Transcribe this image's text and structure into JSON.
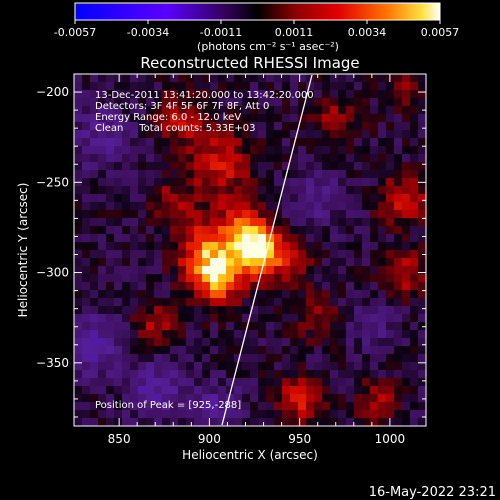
{
  "colors": {
    "background": "#000000",
    "text": "#ffffff",
    "limb": "#ffffff"
  },
  "colorbar": {
    "ticks": [
      "-0.0057",
      "-0.0034",
      "-0.0011",
      "0.0011",
      "0.0034",
      "0.0057"
    ],
    "unit_label": "(photons cm⁻² s⁻¹ asec⁻²)",
    "min": -0.0057,
    "max": 0.0057
  },
  "chart_data": {
    "type": "heatmap",
    "title": "Reconstructed RHESSI Image",
    "xlabel": "Heliocentric X (arcsec)",
    "ylabel": "Heliocentric Y (arcsec)",
    "xlim": [
      825,
      1020
    ],
    "ylim": [
      -385,
      -190
    ],
    "xticks": [
      850,
      900,
      950,
      1000
    ],
    "yticks": [
      -200,
      -250,
      -300,
      -350
    ],
    "annotations": [
      "13-Dec-2011 13:41:20.000 to 13:42:20.000",
      "Detectors: 3F 4F 5F 6F 7F 8F, Att 0",
      "Energy Range: 6.0 - 12.0 keV",
      "Clean     Total counts: 5.33E+03"
    ],
    "peak_label": "Position of Peak = [925,-288]",
    "peak": [
      925,
      -288
    ],
    "sources": [
      {
        "x": 927,
        "y": -288,
        "amp": 0.0057,
        "sigma": 9
      },
      {
        "x": 905,
        "y": -303,
        "amp": 0.0046,
        "sigma": 10
      },
      {
        "x": 897,
        "y": -288,
        "amp": 0.0034,
        "sigma": 11
      },
      {
        "x": 917,
        "y": -275,
        "amp": 0.003,
        "sigma": 11
      },
      {
        "x": 945,
        "y": -295,
        "amp": 0.002,
        "sigma": 9
      },
      {
        "x": 907,
        "y": -240,
        "amp": 0.0028,
        "sigma": 12
      },
      {
        "x": 885,
        "y": -215,
        "amp": 0.0024,
        "sigma": 10
      },
      {
        "x": 880,
        "y": -260,
        "amp": 0.0018,
        "sigma": 9
      },
      {
        "x": 960,
        "y": -325,
        "amp": 0.0016,
        "sigma": 9
      },
      {
        "x": 950,
        "y": -370,
        "amp": 0.0028,
        "sigma": 9
      },
      {
        "x": 992,
        "y": -372,
        "amp": 0.0022,
        "sigma": 8
      },
      {
        "x": 1007,
        "y": -260,
        "amp": 0.003,
        "sigma": 9
      },
      {
        "x": 1010,
        "y": -300,
        "amp": 0.0022,
        "sigma": 9
      },
      {
        "x": 970,
        "y": -215,
        "amp": 0.0018,
        "sigma": 9
      },
      {
        "x": 1010,
        "y": -200,
        "amp": 0.0016,
        "sigma": 8
      },
      {
        "x": 870,
        "y": -330,
        "amp": 0.002,
        "sigma": 9
      },
      {
        "x": 840,
        "y": -225,
        "amp": -0.0016,
        "sigma": 14
      },
      {
        "x": 835,
        "y": -340,
        "amp": -0.0024,
        "sigma": 12
      },
      {
        "x": 870,
        "y": -365,
        "amp": -0.0022,
        "sigma": 12
      },
      {
        "x": 905,
        "y": -375,
        "amp": -0.0018,
        "sigma": 10
      },
      {
        "x": 960,
        "y": -260,
        "amp": -0.0014,
        "sigma": 12
      },
      {
        "x": 990,
        "y": -330,
        "amp": -0.0012,
        "sigma": 10
      }
    ]
  },
  "timestamp": "16-May-2022 23:21"
}
